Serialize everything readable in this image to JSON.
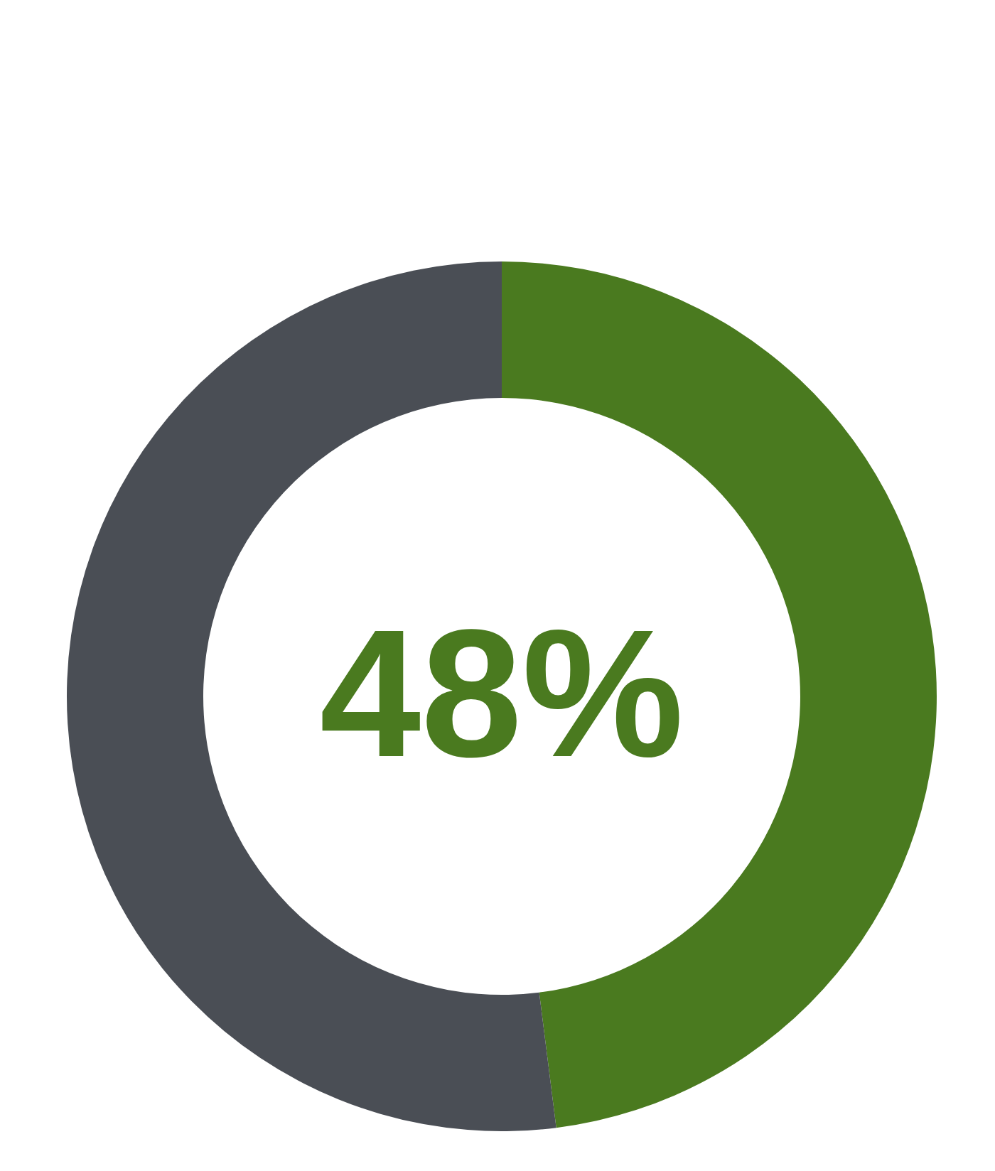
{
  "chart_data": {
    "type": "donut",
    "categories": [
      null,
      null
    ],
    "values": [
      48,
      52
    ],
    "colors": [
      "#4a7a1f",
      "#4a4e55"
    ],
    "value_labels": [
      "48%",
      null
    ]
  }
}
